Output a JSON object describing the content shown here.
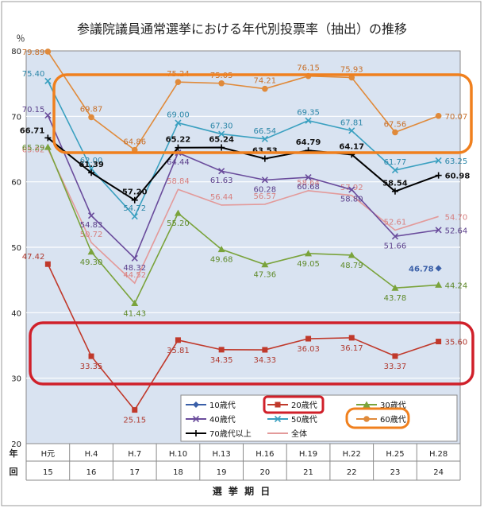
{
  "chart_data": {
    "type": "line",
    "title": "参議院議員通常選挙における年代別投票率（抽出）の推移",
    "ylabel": "％",
    "xlabel": "選 挙 期 日",
    "row_label_year": "年",
    "row_label_session": "回",
    "ylim": [
      20,
      80
    ],
    "yticks": [
      20,
      30,
      40,
      50,
      60,
      70,
      80
    ],
    "grid": true,
    "legend_position": "bottom-right",
    "categories": [
      "H元",
      "H.4",
      "H.7",
      "H.10",
      "H.13",
      "H.16",
      "H.19",
      "H.22",
      "H.25",
      "H.28"
    ],
    "sessions": [
      "15",
      "16",
      "17",
      "18",
      "19",
      "20",
      "21",
      "22",
      "23",
      "24"
    ],
    "series": [
      {
        "name": "10歳代",
        "color": "#3a5fa8",
        "marker": "diamond",
        "values": [
          null,
          null,
          null,
          null,
          null,
          null,
          null,
          null,
          null,
          46.78
        ],
        "labels": [
          "",
          "",
          "",
          "",
          "",
          "",
          "",
          "",
          "",
          "46.78"
        ]
      },
      {
        "name": "20歳代",
        "color": "#c0392b",
        "marker": "square",
        "values": [
          47.42,
          33.35,
          25.15,
          35.81,
          34.35,
          34.33,
          36.03,
          36.17,
          33.37,
          35.6
        ],
        "labels": [
          "47.42",
          "33.35",
          "25.15",
          "35.81",
          "34.35",
          "34.33",
          "36.03",
          "36.17",
          "33.37",
          "35.60"
        ]
      },
      {
        "name": "30歳代",
        "color": "#7aa33b",
        "marker": "triangle",
        "values": [
          65.29,
          49.3,
          41.43,
          55.2,
          49.68,
          47.36,
          49.05,
          48.79,
          43.78,
          44.24
        ],
        "labels": [
          "65.29",
          "49.30",
          "41.43",
          "55.20",
          "49.68",
          "47.36",
          "49.05",
          "48.79",
          "43.78",
          "44.24"
        ]
      },
      {
        "name": "40歳代",
        "color": "#6a4c9c",
        "marker": "x",
        "values": [
          70.15,
          54.83,
          48.32,
          64.44,
          61.63,
          60.28,
          60.68,
          58.8,
          51.66,
          52.64
        ],
        "labels": [
          "70.15",
          "54.83",
          "48.32",
          "64.44",
          "61.63",
          "60.28",
          "60.68",
          "58.80",
          "51.66",
          "52.64"
        ]
      },
      {
        "name": "50歳代",
        "color": "#3aa0c0",
        "marker": "x",
        "values": [
          75.4,
          62.0,
          54.72,
          69.0,
          67.3,
          66.54,
          69.35,
          67.81,
          61.77,
          63.25
        ],
        "labels": [
          "75.40",
          "62.00",
          "54.72",
          "69.00",
          "67.30",
          "66.54",
          "69.35",
          "67.81",
          "61.77",
          "63.25"
        ]
      },
      {
        "name": "60歳代",
        "color": "#e08a3a",
        "marker": "circle",
        "values": [
          79.89,
          69.87,
          64.86,
          75.24,
          75.05,
          74.21,
          76.15,
          75.93,
          67.56,
          70.07
        ],
        "labels": [
          "79.89",
          "69.87",
          "64.86",
          "75.24",
          "75.05",
          "74.21",
          "76.15",
          "75.93",
          "67.56",
          "70.07"
        ]
      },
      {
        "name": "70歳代以上",
        "color": "#000000",
        "marker": "plus",
        "values": [
          66.71,
          61.39,
          57.2,
          65.22,
          65.24,
          63.53,
          64.79,
          64.17,
          58.54,
          60.98
        ],
        "labels": [
          "66.71",
          "61.39",
          "57.20",
          "65.22",
          "65.24",
          "63.53",
          "64.79",
          "64.17",
          "58.54",
          "60.98"
        ]
      },
      {
        "name": "全体",
        "color": "#e39a9a",
        "marker": "none",
        "values": [
          65.02,
          50.72,
          44.52,
          58.84,
          56.44,
          56.57,
          58.64,
          57.92,
          52.61,
          54.7
        ],
        "labels": [
          "65.02",
          "50.72",
          "44.52",
          "58.84",
          "56.44",
          "56.57",
          "58.64",
          "57.92",
          "52.61",
          "54.70"
        ]
      }
    ],
    "highlight_colors": {
      "top_box": "#f0801e",
      "bottom_box": "#d0202a"
    }
  }
}
